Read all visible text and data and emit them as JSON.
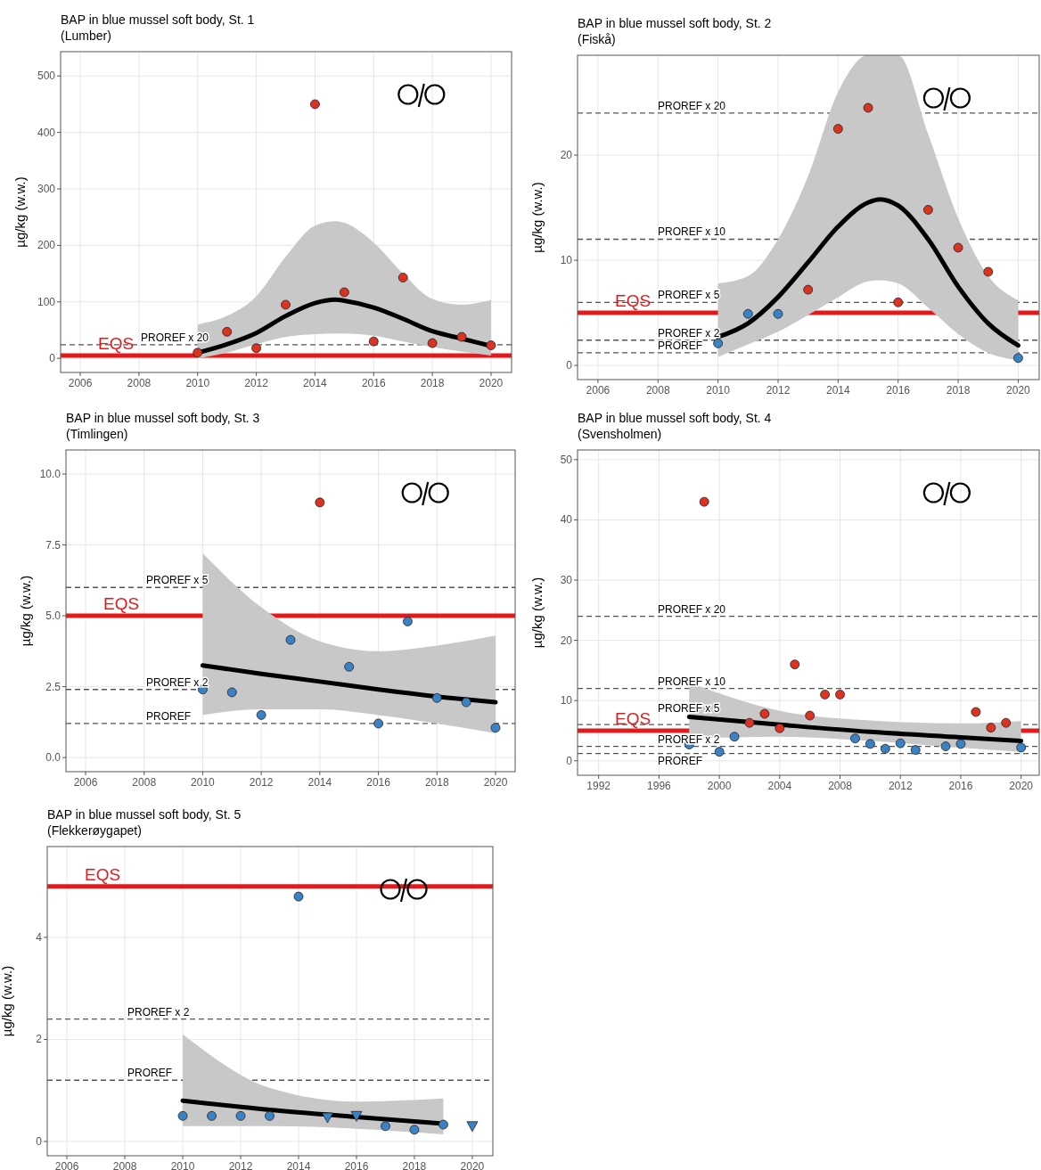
{
  "chart_data": [
    {
      "type": "scatter",
      "title": "BAP in blue mussel soft body, St. 1",
      "subtitle": "(Lumber)",
      "ylabel": "µg/kg (w.w.)",
      "xlim": [
        2005.33,
        2020.7
      ],
      "xticks": [
        2006,
        2008,
        2010,
        2012,
        2014,
        2016,
        2018,
        2020
      ],
      "ylim": [
        -25,
        543
      ],
      "yticks": [
        0,
        100,
        200,
        300,
        400,
        500
      ],
      "grid": true,
      "series": [
        {
          "type": "line",
          "color": "#000000",
          "line_style": "solid",
          "x": [
            2010,
            2011,
            2012,
            2013,
            2014,
            2014.7,
            2015,
            2016,
            2017,
            2018,
            2019,
            2020
          ],
          "values": [
            10,
            25,
            45,
            75,
            98,
            104,
            102,
            90,
            70,
            48,
            35,
            22
          ],
          "lower": [
            0,
            10,
            25,
            38,
            43,
            44,
            44,
            40,
            30,
            20,
            12,
            5
          ],
          "upper": [
            60,
            75,
            110,
            180,
            235,
            243,
            240,
            205,
            150,
            105,
            95,
            103
          ]
        },
        {
          "type": "scatter",
          "marker": "circle",
          "color": "#dc3222",
          "x": [
            2010,
            2011,
            2012,
            2013,
            2014,
            2015,
            2016,
            2017,
            2018,
            2019,
            2020
          ],
          "values": [
            10,
            47,
            18,
            95,
            450,
            117,
            30,
            143,
            27,
            38,
            23
          ]
        }
      ],
      "ref_lines": [
        {
          "axis": "y",
          "value": 5,
          "label": "EQS",
          "color": "#e31a1c",
          "line_style": "solid"
        },
        {
          "axis": "y",
          "value": 24,
          "label": "PROREF x 20",
          "color": "#555555",
          "line_style": "dashed"
        }
      ]
    },
    {
      "type": "scatter",
      "title": "BAP in blue mussel soft body, St. 2",
      "subtitle": "(Fiskå)",
      "ylabel": "µg/kg (w.w.)",
      "xlim": [
        2005.32,
        2020.7
      ],
      "xticks": [
        2006,
        2008,
        2010,
        2012,
        2014,
        2016,
        2018,
        2020
      ],
      "ylim": [
        -1.35,
        29.5
      ],
      "yticks": [
        0,
        10,
        20
      ],
      "grid": true,
      "series": [
        {
          "type": "line",
          "color": "#000000",
          "line_style": "solid",
          "x": [
            2010,
            2011,
            2012,
            2013,
            2014,
            2015,
            2015.4,
            2016,
            2017,
            2018,
            2019,
            2020
          ],
          "values": [
            2.7,
            4,
            6.5,
            9.8,
            13.2,
            15.5,
            15.8,
            15.2,
            12,
            7.5,
            4,
            1.9
          ],
          "lower": [
            0.8,
            2,
            3.2,
            4.8,
            6.5,
            8,
            8.1,
            7.8,
            5.5,
            3,
            1.2,
            0.5
          ],
          "upper": [
            7.8,
            8.5,
            12,
            18,
            26,
            29.5,
            29.5,
            29.5,
            22,
            14,
            8.5,
            6.2
          ]
        },
        {
          "type": "scatter",
          "marker": "circle",
          "color": "#dc3222",
          "x": [
            2013,
            2014,
            2015,
            2016,
            2017,
            2018,
            2019
          ],
          "values": [
            7.2,
            22.5,
            24.5,
            6,
            14.8,
            11.2,
            8.9
          ]
        },
        {
          "type": "scatter",
          "marker": "circle",
          "color": "#3a82c4",
          "x": [
            2010,
            2011,
            2012,
            2020
          ],
          "values": [
            2.1,
            4.9,
            4.9,
            0.7
          ]
        }
      ],
      "ref_lines": [
        {
          "axis": "y",
          "value": 5,
          "label": "EQS",
          "color": "#e31a1c",
          "line_style": "solid"
        },
        {
          "axis": "y",
          "value": 1.2,
          "label": "PROREF",
          "color": "#555555",
          "line_style": "dashed"
        },
        {
          "axis": "y",
          "value": 2.4,
          "label": "PROREF x 2",
          "color": "#555555",
          "line_style": "dashed"
        },
        {
          "axis": "y",
          "value": 6,
          "label": "PROREF x 5",
          "color": "#555555",
          "line_style": "dashed"
        },
        {
          "axis": "y",
          "value": 12,
          "label": "PROREF x 10",
          "color": "#555555",
          "line_style": "dashed"
        },
        {
          "axis": "y",
          "value": 24,
          "label": "PROREF x 20",
          "color": "#555555",
          "line_style": "dashed"
        }
      ]
    },
    {
      "type": "scatter",
      "title": "BAP in blue mussel soft body, St. 3",
      "subtitle": "(Timlingen)",
      "ylabel": "µg/kg (w.w.)",
      "xlim": [
        2005.33,
        2020.67
      ],
      "xticks": [
        2006,
        2008,
        2010,
        2012,
        2014,
        2016,
        2018,
        2020
      ],
      "ylim": [
        -0.5,
        10.85
      ],
      "yticks": [
        {
          "value": 0,
          "label": "0.0"
        },
        {
          "value": 2.5,
          "label": "2.5"
        },
        {
          "value": 5,
          "label": "5.0"
        },
        {
          "value": 7.5,
          "label": "7.5"
        },
        {
          "value": 10,
          "label": "10.0"
        }
      ],
      "grid": true,
      "series": [
        {
          "type": "line",
          "color": "#000000",
          "line_style": "solid",
          "x": [
            2010,
            2012,
            2014,
            2016,
            2018,
            2020
          ],
          "values": [
            3.25,
            2.95,
            2.68,
            2.4,
            2.15,
            1.95
          ],
          "lower": [
            1.5,
            1.7,
            1.7,
            1.5,
            1.2,
            0.85
          ],
          "upper": [
            7.2,
            5.3,
            4.1,
            3.75,
            3.95,
            4.3
          ]
        },
        {
          "type": "scatter",
          "marker": "circle",
          "color": "#dc3222",
          "x": [
            2014
          ],
          "values": [
            9
          ]
        },
        {
          "type": "scatter",
          "marker": "circle",
          "color": "#3a82c4",
          "x": [
            2010,
            2011,
            2012,
            2013,
            2015,
            2016,
            2017,
            2018,
            2019,
            2020
          ],
          "values": [
            2.4,
            2.3,
            1.5,
            4.15,
            3.2,
            1.2,
            4.8,
            2.1,
            1.95,
            1.05
          ]
        }
      ],
      "ref_lines": [
        {
          "axis": "y",
          "value": 5,
          "label": "EQS",
          "color": "#e31a1c",
          "line_style": "solid"
        },
        {
          "axis": "y",
          "value": 1.2,
          "label": "PROREF",
          "color": "#555555",
          "line_style": "dashed"
        },
        {
          "axis": "y",
          "value": 2.4,
          "label": "PROREF x 2",
          "color": "#555555",
          "line_style": "dashed"
        },
        {
          "axis": "y",
          "value": 6,
          "label": "PROREF x 5",
          "color": "#555555",
          "line_style": "dashed"
        }
      ]
    },
    {
      "type": "scatter",
      "title": "BAP in blue mussel soft body, St. 4",
      "subtitle": "(Svensholmen)",
      "ylabel": "µg/kg (w.w.)",
      "xlim": [
        1990.6,
        2021.2
      ],
      "xticks": [
        1992,
        1996,
        2000,
        2004,
        2008,
        2012,
        2016,
        2020
      ],
      "ylim": [
        -2.4,
        51.6
      ],
      "yticks": [
        0,
        10,
        20,
        30,
        40,
        50
      ],
      "grid": true,
      "series": [
        {
          "type": "line",
          "color": "#000000",
          "line_style": "solid",
          "x": [
            1998,
            2004,
            2010,
            2016,
            2020
          ],
          "values": [
            7.3,
            6,
            4.8,
            3.9,
            3.3
          ],
          "lower": [
            3.7,
            4,
            3.3,
            2.2,
            1.5
          ],
          "upper": [
            13,
            8.3,
            6.7,
            6.2,
            6.6
          ]
        },
        {
          "type": "scatter",
          "marker": "circle",
          "color": "#dc3222",
          "x": [
            1999,
            2002,
            2003,
            2004,
            2005,
            2006,
            2007,
            2008,
            2017,
            2018,
            2019
          ],
          "values": [
            43,
            6.3,
            7.8,
            5.4,
            16,
            7.5,
            11,
            11,
            8.1,
            5.5,
            6.3
          ]
        },
        {
          "type": "scatter",
          "marker": "circle",
          "color": "#3a82c4",
          "x": [
            1998,
            2000,
            2001,
            2009,
            2010,
            2011,
            2012,
            2013,
            2015,
            2016,
            2020
          ],
          "values": [
            2.7,
            1.5,
            4,
            3.7,
            2.8,
            2,
            2.9,
            1.8,
            2.4,
            2.8,
            2.2
          ]
        }
      ],
      "ref_lines": [
        {
          "axis": "y",
          "value": 5,
          "label": "EQS",
          "color": "#e31a1c",
          "line_style": "solid"
        },
        {
          "axis": "y",
          "value": 1.2,
          "label": "PROREF",
          "color": "#555555",
          "line_style": "dashed"
        },
        {
          "axis": "y",
          "value": 2.4,
          "label": "PROREF x 2",
          "color": "#555555",
          "line_style": "dashed"
        },
        {
          "axis": "y",
          "value": 6,
          "label": "PROREF x 5",
          "color": "#555555",
          "line_style": "dashed"
        },
        {
          "axis": "y",
          "value": 12,
          "label": "PROREF x 10",
          "color": "#555555",
          "line_style": "dashed"
        },
        {
          "axis": "y",
          "value": 24,
          "label": "PROREF x 20",
          "color": "#555555",
          "line_style": "dashed"
        }
      ]
    },
    {
      "type": "scatter",
      "title": "BAP in blue mussel soft body, St. 5",
      "subtitle": "(Flekkerøygapet)",
      "ylabel": "µg/kg (w.w.)",
      "xlim": [
        2005.32,
        2020.71
      ],
      "xticks": [
        2006,
        2008,
        2010,
        2012,
        2014,
        2016,
        2018,
        2020
      ],
      "ylim": [
        -0.28,
        5.78
      ],
      "yticks": [
        0,
        2,
        4
      ],
      "grid": true,
      "series": [
        {
          "type": "line",
          "color": "#000000",
          "line_style": "solid",
          "x": [
            2010,
            2013,
            2016,
            2019
          ],
          "values": [
            0.8,
            0.62,
            0.48,
            0.35
          ],
          "lower": [
            0.3,
            0.3,
            0.25,
            0.14
          ],
          "upper": [
            2.1,
            1.05,
            0.78,
            0.84
          ]
        },
        {
          "type": "scatter",
          "marker": "circle",
          "color": "#3a82c4",
          "x": [
            2010,
            2011,
            2012,
            2013,
            2014,
            2017,
            2018,
            2019
          ],
          "values": [
            0.5,
            0.5,
            0.5,
            0.5,
            4.8,
            0.3,
            0.23,
            0.33
          ]
        },
        {
          "type": "scatter",
          "marker": "triangle",
          "color": "#3a82c4",
          "x": [
            2015,
            2016,
            2020
          ],
          "values": [
            0.47,
            0.5,
            0.3
          ]
        }
      ],
      "ref_lines": [
        {
          "axis": "y",
          "value": 5,
          "label": "EQS",
          "color": "#e31a1c",
          "line_style": "solid"
        },
        {
          "axis": "y",
          "value": 1.2,
          "label": "PROREF",
          "color": "#555555",
          "line_style": "dashed"
        },
        {
          "axis": "y",
          "value": 2.4,
          "label": "PROREF x 2",
          "color": "#555555",
          "line_style": "dashed"
        }
      ]
    }
  ]
}
